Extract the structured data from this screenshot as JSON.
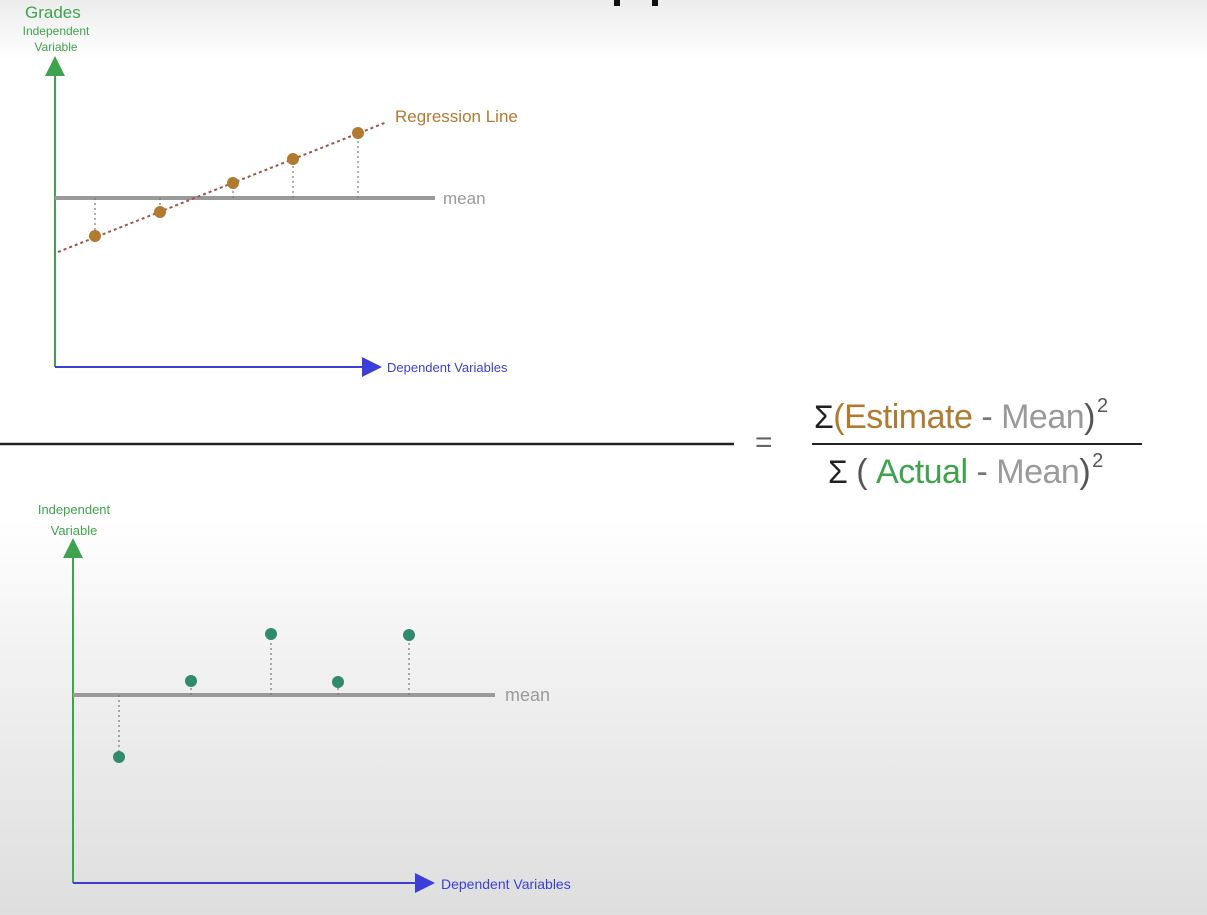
{
  "colors": {
    "green": "#3fa34d",
    "blue": "#3b3fd6",
    "brown": "#b07a30",
    "gray": "#9a9a9a",
    "teal": "#2f8a6e",
    "fraction_bar": "#222222"
  },
  "top_plot": {
    "title": "Grades",
    "y_label_line1": "Independent",
    "y_label_line2": "Variable",
    "x_label": "Dependent Variables",
    "mean_label": "mean",
    "regression_label": "Regression Line"
  },
  "bottom_plot": {
    "y_label_line1": "Independent",
    "y_label_line2": "Variable",
    "x_label": "Dependent Variables",
    "mean_label": "mean"
  },
  "formula": {
    "sigma": "Σ",
    "numerator_open": "(",
    "numerator_term": "Estimate",
    "minus": "-",
    "mean_term": "Mean",
    "close": ")",
    "exponent": "2",
    "denominator_open": "(",
    "denominator_term": "Actual",
    "equals": "="
  }
}
